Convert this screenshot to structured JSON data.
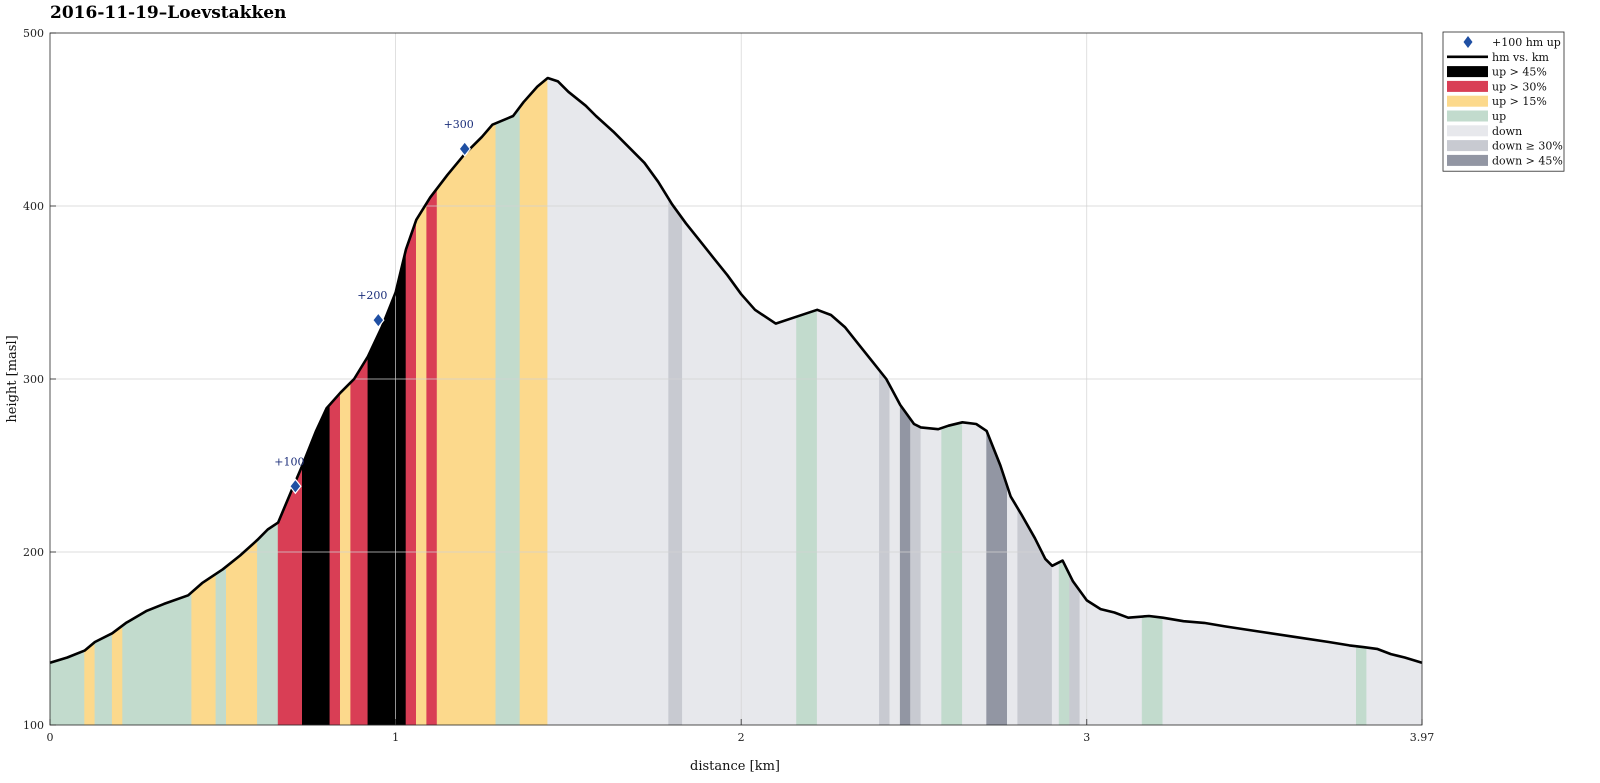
{
  "chart_data": {
    "type": "area",
    "title": "2016-11-19–Loevstakken",
    "xlabel": "distance [km]",
    "ylabel": "height [masl]",
    "xlim": [
      0,
      3.97
    ],
    "ylim": [
      100,
      500
    ],
    "x_ticks": [
      0,
      1,
      2,
      3,
      3.97
    ],
    "x_tick_labels": [
      "0",
      "1",
      "2",
      "3",
      "3.97"
    ],
    "y_ticks": [
      100,
      200,
      300,
      400,
      500
    ],
    "y_tick_labels": [
      "100",
      "200",
      "300",
      "400",
      "500"
    ],
    "grid": true,
    "legend_placement": "outside-top-right",
    "line_color": "#000000",
    "profile": {
      "x": [
        0,
        0.05,
        0.1,
        0.13,
        0.18,
        0.22,
        0.28,
        0.33,
        0.4,
        0.44,
        0.5,
        0.55,
        0.6,
        0.63,
        0.66,
        0.7,
        0.73,
        0.77,
        0.8,
        0.84,
        0.88,
        0.92,
        0.96,
        1.0,
        1.03,
        1.06,
        1.1,
        1.15,
        1.2,
        1.25,
        1.28,
        1.34,
        1.37,
        1.41,
        1.44,
        1.47,
        1.5,
        1.55,
        1.58,
        1.63,
        1.67,
        1.72,
        1.76,
        1.8,
        1.84,
        1.88,
        1.92,
        1.96,
        2.0,
        2.04,
        2.1,
        2.16,
        2.22,
        2.26,
        2.3,
        2.34,
        2.38,
        2.42,
        2.46,
        2.5,
        2.52,
        2.57,
        2.6,
        2.64,
        2.68,
        2.71,
        2.75,
        2.78,
        2.81,
        2.85,
        2.88,
        2.9,
        2.93,
        2.96,
        3.0,
        3.04,
        3.08,
        3.12,
        3.18,
        3.22,
        3.28,
        3.34,
        3.4,
        3.5,
        3.6,
        3.7,
        3.76,
        3.8,
        3.84,
        3.88,
        3.92,
        3.97
      ],
      "y": [
        136,
        139,
        143,
        148,
        153,
        159,
        166,
        170,
        175,
        182,
        190,
        198,
        207,
        213,
        217,
        236,
        250,
        270,
        283,
        292,
        300,
        313,
        330,
        350,
        375,
        392,
        405,
        418,
        430,
        440,
        447,
        452,
        460,
        469,
        474,
        472,
        466,
        458,
        452,
        443,
        435,
        425,
        414,
        401,
        390,
        380,
        370,
        360,
        349,
        340,
        332,
        336,
        340,
        337,
        330,
        320,
        310,
        300,
        285,
        274,
        272,
        271,
        273,
        275,
        274,
        270,
        250,
        232,
        222,
        208,
        196,
        192,
        195,
        183,
        172,
        167,
        165,
        162,
        163,
        162,
        160,
        159,
        157,
        154,
        151,
        148,
        146,
        145,
        144,
        141,
        139,
        136
      ]
    },
    "segments": [
      {
        "from": 0.0,
        "to": 0.1,
        "class": "up"
      },
      {
        "from": 0.1,
        "to": 0.13,
        "class": "up > 15%"
      },
      {
        "from": 0.13,
        "to": 0.18,
        "class": "up"
      },
      {
        "from": 0.18,
        "to": 0.21,
        "class": "up > 15%"
      },
      {
        "from": 0.21,
        "to": 0.41,
        "class": "up"
      },
      {
        "from": 0.41,
        "to": 0.48,
        "class": "up > 15%"
      },
      {
        "from": 0.48,
        "to": 0.51,
        "class": "up"
      },
      {
        "from": 0.51,
        "to": 0.6,
        "class": "up > 15%"
      },
      {
        "from": 0.6,
        "to": 0.66,
        "class": "up"
      },
      {
        "from": 0.66,
        "to": 0.73,
        "class": "up > 30%"
      },
      {
        "from": 0.73,
        "to": 0.81,
        "class": "up > 45%"
      },
      {
        "from": 0.81,
        "to": 0.84,
        "class": "up > 30%"
      },
      {
        "from": 0.84,
        "to": 0.87,
        "class": "up > 15%"
      },
      {
        "from": 0.87,
        "to": 0.92,
        "class": "up > 30%"
      },
      {
        "from": 0.92,
        "to": 1.03,
        "class": "up > 45%"
      },
      {
        "from": 1.03,
        "to": 1.06,
        "class": "up > 30%"
      },
      {
        "from": 1.06,
        "to": 1.09,
        "class": "up > 15%"
      },
      {
        "from": 1.09,
        "to": 1.12,
        "class": "up > 30%"
      },
      {
        "from": 1.12,
        "to": 1.29,
        "class": "up > 15%"
      },
      {
        "from": 1.29,
        "to": 1.36,
        "class": "up"
      },
      {
        "from": 1.36,
        "to": 1.44,
        "class": "up > 15%"
      },
      {
        "from": 1.44,
        "to": 1.79,
        "class": "down"
      },
      {
        "from": 1.79,
        "to": 1.83,
        "class": "down ≥ 30%"
      },
      {
        "from": 1.83,
        "to": 2.16,
        "class": "down"
      },
      {
        "from": 2.16,
        "to": 2.22,
        "class": "up"
      },
      {
        "from": 2.22,
        "to": 2.4,
        "class": "down"
      },
      {
        "from": 2.4,
        "to": 2.43,
        "class": "down ≥ 30%"
      },
      {
        "from": 2.43,
        "to": 2.46,
        "class": "down"
      },
      {
        "from": 2.46,
        "to": 2.49,
        "class": "down > 45%"
      },
      {
        "from": 2.49,
        "to": 2.52,
        "class": "down ≥ 30%"
      },
      {
        "from": 2.52,
        "to": 2.58,
        "class": "down"
      },
      {
        "from": 2.58,
        "to": 2.64,
        "class": "up"
      },
      {
        "from": 2.64,
        "to": 2.71,
        "class": "down"
      },
      {
        "from": 2.71,
        "to": 2.77,
        "class": "down > 45%"
      },
      {
        "from": 2.77,
        "to": 2.8,
        "class": "down"
      },
      {
        "from": 2.8,
        "to": 2.9,
        "class": "down ≥ 30%"
      },
      {
        "from": 2.9,
        "to": 2.92,
        "class": "down"
      },
      {
        "from": 2.92,
        "to": 2.95,
        "class": "up"
      },
      {
        "from": 2.95,
        "to": 2.98,
        "class": "down ≥ 30%"
      },
      {
        "from": 2.98,
        "to": 3.16,
        "class": "down"
      },
      {
        "from": 3.16,
        "to": 3.22,
        "class": "up"
      },
      {
        "from": 3.22,
        "to": 3.78,
        "class": "down"
      },
      {
        "from": 3.78,
        "to": 3.81,
        "class": "up"
      },
      {
        "from": 3.81,
        "to": 3.97,
        "class": "down"
      }
    ],
    "markers": [
      {
        "x": 0.71,
        "y": 238,
        "label": "+100"
      },
      {
        "x": 0.95,
        "y": 334,
        "label": "+200"
      },
      {
        "x": 1.2,
        "y": 433,
        "label": "+300"
      }
    ],
    "marker_color": "#1f4fa3",
    "legend": [
      {
        "label": "+100 hm up",
        "kind": "marker",
        "color": "#1f4fa3"
      },
      {
        "label": "hm vs. km",
        "kind": "line",
        "color": "#000000"
      },
      {
        "label": "up > 45%",
        "kind": "patch",
        "color": "#000000"
      },
      {
        "label": "up > 30%",
        "kind": "patch",
        "color": "#d93e55"
      },
      {
        "label": "up > 15%",
        "kind": "patch",
        "color": "#fcd98c"
      },
      {
        "label": "up",
        "kind": "patch",
        "color": "#c2dbcd"
      },
      {
        "label": "down",
        "kind": "patch",
        "color": "#e7e8ec"
      },
      {
        "label": "down ≥ 30%",
        "kind": "patch",
        "color": "#c8cad1"
      },
      {
        "label": "down > 45%",
        "kind": "patch",
        "color": "#9296a3"
      }
    ],
    "class_colors": {
      "up > 45%": "#000000",
      "up > 30%": "#d93e55",
      "up > 15%": "#fcd98c",
      "up": "#c2dbcd",
      "down": "#e7e8ec",
      "down ≥ 30%": "#c8cad1",
      "down > 45%": "#9296a3"
    }
  }
}
